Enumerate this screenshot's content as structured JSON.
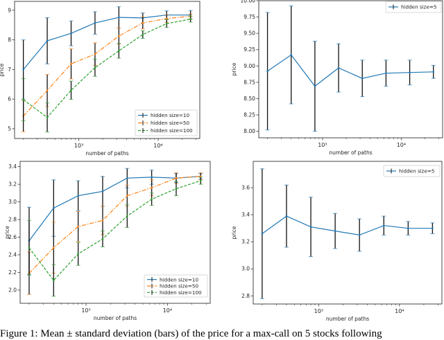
{
  "caption": "Figure 1: Mean ± standard deviation (bars) of the price for a max-call on 5 stocks following",
  "chart_data": [
    {
      "type": "line",
      "xlabel": "number of paths",
      "ylabel": "price",
      "xscale": "log",
      "xlim": [
        155,
        33500
      ],
      "ylim": [
        4.67,
        9.3
      ],
      "yticks": [
        "5",
        "6",
        "7",
        "8",
        "9"
      ],
      "ytick_values": [
        5,
        6,
        7,
        8,
        9
      ],
      "xticks": [
        "10³",
        "10⁴"
      ],
      "xtick_values": [
        1000,
        10000
      ],
      "legend": "lower-right",
      "x": [
        200,
        400,
        800,
        1600,
        3200,
        6400,
        12800,
        25600
      ],
      "series": [
        {
          "name": "hidden size=10",
          "color": "#1f77b4",
          "style": "solid",
          "values": [
            7.0,
            7.97,
            8.22,
            8.57,
            8.76,
            8.74,
            8.84,
            8.84
          ],
          "std": [
            1.0,
            0.78,
            0.42,
            0.38,
            0.36,
            0.17,
            0.14,
            0.15
          ]
        },
        {
          "name": "hidden size=50",
          "color": "#ff7f0e",
          "style": "dashdot",
          "values": [
            5.43,
            6.29,
            7.19,
            7.52,
            8.13,
            8.57,
            8.72,
            8.8
          ],
          "std": [
            0.53,
            0.54,
            0.51,
            0.38,
            0.27,
            0.2,
            0.13,
            0.08
          ]
        },
        {
          "name": "hidden size=100",
          "color": "#2ca02c",
          "style": "dashed",
          "values": [
            5.98,
            5.38,
            6.3,
            7.06,
            7.63,
            8.18,
            8.55,
            8.7
          ],
          "std": [
            0.71,
            0.49,
            0.31,
            0.29,
            0.25,
            0.13,
            0.13,
            0.1
          ]
        }
      ]
    },
    {
      "type": "line",
      "xlabel": "number of paths",
      "ylabel": "price",
      "xscale": "log",
      "xlim": [
        155,
        33500
      ],
      "ylim": [
        7.9,
        10.0
      ],
      "yticks": [
        "8.00",
        "8.25",
        "8.50",
        "8.75",
        "9.00",
        "9.25",
        "9.50",
        "9.75",
        "10.00"
      ],
      "ytick_values": [
        8.0,
        8.25,
        8.5,
        8.75,
        9.0,
        9.25,
        9.5,
        9.75,
        10.0
      ],
      "xticks": [
        "10³",
        "10⁴"
      ],
      "xtick_values": [
        1000,
        10000
      ],
      "legend": "upper-right",
      "x": [
        200,
        400,
        800,
        1600,
        3200,
        6400,
        12800,
        25600
      ],
      "series": [
        {
          "name": "hidden size=5",
          "color": "#1f77b4",
          "style": "solid",
          "values": [
            8.92,
            9.17,
            8.69,
            8.97,
            8.81,
            8.89,
            8.9,
            8.91
          ],
          "std": [
            0.9,
            0.75,
            0.69,
            0.37,
            0.28,
            0.2,
            0.19,
            0.1
          ]
        }
      ]
    },
    {
      "type": "line",
      "xlabel": "number of paths",
      "ylabel": "price",
      "xscale": "log",
      "xlim": [
        155,
        33500
      ],
      "ylim": [
        1.85,
        3.46
      ],
      "yticks": [
        "2.0",
        "2.2",
        "2.4",
        "2.6",
        "2.8",
        "3.0",
        "3.2",
        "3.4"
      ],
      "ytick_values": [
        2.0,
        2.2,
        2.4,
        2.6,
        2.8,
        3.0,
        3.2,
        3.4
      ],
      "xticks": [
        "10³",
        "10⁴"
      ],
      "xtick_values": [
        1000,
        10000
      ],
      "legend": "lower-right",
      "x": [
        200,
        400,
        800,
        1600,
        3200,
        6400,
        12800,
        25600
      ],
      "series": [
        {
          "name": "hidden size=10",
          "color": "#1f77b4",
          "style": "solid",
          "values": [
            2.56,
            2.93,
            3.07,
            3.12,
            3.27,
            3.28,
            3.27,
            3.29
          ],
          "std": [
            0.38,
            0.32,
            0.17,
            0.17,
            0.11,
            0.08,
            0.05,
            0.03
          ]
        },
        {
          "name": "hidden size=50",
          "color": "#ff7f0e",
          "style": "dashdot",
          "values": [
            2.19,
            2.48,
            2.72,
            2.79,
            3.07,
            3.16,
            3.27,
            3.29
          ],
          "std": [
            0.24,
            0.29,
            0.17,
            0.16,
            0.12,
            0.09,
            0.06,
            0.04
          ]
        },
        {
          "name": "hidden size=100",
          "color": "#2ca02c",
          "style": "dashed",
          "values": [
            2.48,
            2.11,
            2.41,
            2.58,
            2.84,
            3.03,
            3.15,
            3.24
          ],
          "std": [
            0.31,
            0.18,
            0.13,
            0.09,
            0.13,
            0.07,
            0.08,
            0.04
          ]
        }
      ]
    },
    {
      "type": "line",
      "xlabel": "number of paths",
      "ylabel": "price",
      "xscale": "log",
      "xlim": [
        155,
        33500
      ],
      "ylim": [
        2.74,
        3.795
      ],
      "yticks": [
        "2.8",
        "3.0",
        "3.2",
        "3.4",
        "3.6"
      ],
      "ytick_values": [
        2.8,
        3.0,
        3.2,
        3.4,
        3.6
      ],
      "xticks": [
        "10³",
        "10⁴"
      ],
      "xtick_values": [
        1000,
        10000
      ],
      "legend": "upper-right",
      "x": [
        200,
        400,
        800,
        1600,
        3200,
        6400,
        12800,
        25600
      ],
      "series": [
        {
          "name": "hidden size=5",
          "color": "#1f77b4",
          "style": "solid",
          "values": [
            3.26,
            3.39,
            3.31,
            3.28,
            3.25,
            3.32,
            3.3,
            3.3
          ],
          "std": [
            0.48,
            0.23,
            0.22,
            0.13,
            0.12,
            0.07,
            0.05,
            0.04
          ]
        }
      ]
    }
  ]
}
